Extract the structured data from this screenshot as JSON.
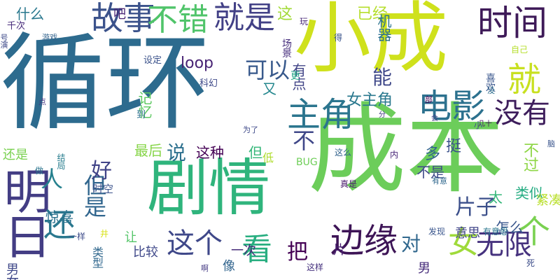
{
  "words": [
    {
      "text": "循环",
      "color": "#2d6b8e",
      "vertical": false
    },
    {
      "text": "成本",
      "color": "#6ccd5a",
      "vertical": false
    },
    {
      "text": "小成",
      "color": "#cfe11c",
      "vertical": false
    },
    {
      "text": "剧情",
      "color": "#2fb47c",
      "vertical": false
    },
    {
      "text": "明日",
      "color": "#433d84",
      "vertical": true
    },
    {
      "text": "时间",
      "color": "#3e1a58",
      "vertical": false
    },
    {
      "text": "边缘",
      "color": "#3d1456",
      "vertical": false
    },
    {
      "text": "就",
      "color": "#c8e020",
      "vertical": false
    },
    {
      "text": "电影",
      "color": "#2c718e",
      "vertical": false
    },
    {
      "text": "主角",
      "color": "#2b758e",
      "vertical": false
    },
    {
      "text": "故事",
      "color": "#3b528b",
      "vertical": false
    },
    {
      "text": "不错",
      "color": "#50c46a",
      "vertical": false
    },
    {
      "text": "就是",
      "color": "#424086",
      "vertical": false
    },
    {
      "text": "看",
      "color": "#28ae80",
      "vertical": false
    },
    {
      "text": "还",
      "color": "#2a788e",
      "vertical": false
    },
    {
      "text": "没有",
      "color": "#3e1e5c",
      "vertical": false
    },
    {
      "text": "这个",
      "color": "#3f4889",
      "vertical": false
    },
    {
      "text": "无限",
      "color": "#46327e",
      "vertical": false
    },
    {
      "text": "女",
      "color": "#9fda3a",
      "vertical": false
    },
    {
      "text": "个",
      "color": "#7ad151",
      "vertical": false
    },
    {
      "text": "可以",
      "color": "#38598c",
      "vertical": false
    },
    {
      "text": "把",
      "color": "#440154",
      "vertical": false
    },
    {
      "text": "但是",
      "color": "#31668e",
      "vertical": true
    },
    {
      "text": "不",
      "color": "#3f4788",
      "vertical": false
    },
    {
      "text": "人",
      "color": "#26818e",
      "vertical": false
    },
    {
      "text": "好",
      "color": "#404387",
      "vertical": false
    },
    {
      "text": "说",
      "color": "#2d708e",
      "vertical": false
    },
    {
      "text": "对",
      "color": "#31688e",
      "vertical": false
    },
    {
      "text": "能",
      "color": "#3f4889",
      "vertical": false
    },
    {
      "text": "片子",
      "color": "#3c508b",
      "vertical": false
    },
    {
      "text": "女主角",
      "color": "#2a788e",
      "vertical": false
    },
    {
      "text": "这",
      "color": "#a2da37",
      "vertical": false
    },
    {
      "text": "loop",
      "color": "#482374",
      "vertical": false
    },
    {
      "text": "这种",
      "color": "#440154",
      "vertical": false
    },
    {
      "text": "记忆",
      "color": "#5ec962",
      "vertical": true
    },
    {
      "text": "多",
      "color": "#32648e",
      "vertical": false
    },
    {
      "text": "挺",
      "color": "#3b528b",
      "vertical": false
    },
    {
      "text": "但",
      "color": "#35b779",
      "vertical": false
    },
    {
      "text": "太",
      "color": "#35b779",
      "vertical": false
    },
    {
      "text": "不过",
      "color": "#8ed645",
      "vertical": true
    },
    {
      "text": "最后",
      "color": "#87d549",
      "vertical": false
    },
    {
      "text": "又",
      "color": "#24878e",
      "vertical": false
    },
    {
      "text": "有点",
      "color": "#414487",
      "vertical": true
    },
    {
      "text": "什么",
      "color": "#29788e",
      "vertical": false
    },
    {
      "text": "吧",
      "color": "#482475",
      "vertical": false
    },
    {
      "text": "已经",
      "color": "#b5de2b",
      "vertical": false
    },
    {
      "text": "机器",
      "color": "#2c728e",
      "vertical": true
    },
    {
      "text": "不是",
      "color": "#3e4a89",
      "vertical": false
    },
    {
      "text": "怎么",
      "color": "#39568c",
      "vertical": false
    },
    {
      "text": "类似",
      "color": "#25ac82",
      "vertical": false
    },
    {
      "text": "紧凑",
      "color": "#b8de29",
      "vertical": false
    },
    {
      "text": "还是",
      "color": "#7ad151",
      "vertical": false
    },
    {
      "text": "男女",
      "color": "#3f4889",
      "vertical": true
    },
    {
      "text": "一次",
      "color": "#472c7a",
      "vertical": false
    },
    {
      "text": "像",
      "color": "#32658e",
      "vertical": false
    },
    {
      "text": "比较",
      "color": "#3f4889",
      "vertical": false
    },
    {
      "text": "让",
      "color": "#54c568",
      "vertical": false
    },
    {
      "text": "意思",
      "color": "#404588",
      "vertical": false
    },
    {
      "text": "惊喜",
      "color": "#2c728e",
      "vertical": false
    },
    {
      "text": "片",
      "color": "#481f70",
      "vertical": false
    },
    {
      "text": "男",
      "color": "#472d7b",
      "vertical": false
    },
    {
      "text": "低",
      "color": "#b0dd2f",
      "vertical": false
    },
    {
      "text": "BUG",
      "color": "#6ece58",
      "vertical": false
    },
    {
      "text": "时空",
      "color": "#3b528b",
      "vertical": false
    },
    {
      "text": "类型",
      "color": "#31688e",
      "vertical": true
    },
    {
      "text": "到",
      "color": "#2c718e",
      "vertical": false
    },
    {
      "text": "设定",
      "color": "#3b528b",
      "vertical": false
    },
    {
      "text": "科幻",
      "color": "#3e4989",
      "vertical": false
    },
    {
      "text": "玩",
      "color": "#482878",
      "vertical": false
    },
    {
      "text": "千次",
      "color": "#472a7a",
      "vertical": false
    },
    {
      "text": "号演",
      "color": "#3e4a89",
      "vertical": true
    },
    {
      "text": "场景",
      "color": "#472f7d",
      "vertical": true
    },
    {
      "text": "更",
      "color": "#21a685",
      "vertical": false
    },
    {
      "text": "得",
      "color": "#3a538b",
      "vertical": false
    },
    {
      "text": "喜欢",
      "color": "#39568c",
      "vertical": true
    },
    {
      "text": "没",
      "color": "#2e6f8e",
      "vertical": false
    },
    {
      "text": "部",
      "color": "#440154",
      "vertical": false
    },
    {
      "text": "会",
      "color": "#414287",
      "vertical": false
    },
    {
      "text": "几十",
      "color": "#471063",
      "vertical": false
    },
    {
      "text": "小",
      "color": "#3d4d8a",
      "vertical": false
    },
    {
      "text": "分",
      "color": "#443a83",
      "vertical": false
    },
    {
      "text": "为了",
      "color": "#3e4989",
      "vertical": false
    },
    {
      "text": "自己",
      "color": "#b5de2b",
      "vertical": false
    },
    {
      "text": "脑",
      "color": "#3a548c",
      "vertical": false
    },
    {
      "text": "有意",
      "color": "#31688e",
      "vertical": false
    },
    {
      "text": "有意思",
      "color": "#2a768e",
      "vertical": false
    },
    {
      "text": "真是",
      "color": "#481a6c",
      "vertical": false
    },
    {
      "text": "发现",
      "color": "#39558c",
      "vertical": false
    },
    {
      "text": "这么",
      "color": "#33638d",
      "vertical": false
    },
    {
      "text": "内",
      "color": "#482677",
      "vertical": false
    },
    {
      "text": "这样",
      "color": "#46327e",
      "vertical": false
    },
    {
      "text": "死",
      "color": "#3d4e8a",
      "vertical": false
    },
    {
      "text": "啊",
      "color": "#443983",
      "vertical": false
    },
    {
      "text": "井",
      "color": "#d8e219",
      "vertical": false
    },
    {
      "text": "一样",
      "color": "#3e4c8a",
      "vertical": false
    },
    {
      "text": "做",
      "color": "#2b748e",
      "vertical": false
    },
    {
      "text": "结局",
      "color": "#287d8e",
      "vertical": true
    },
    {
      "text": "游戏",
      "color": "#33638d",
      "vertical": false
    },
    {
      "text": "点",
      "color": "#453781",
      "vertical": false
    }
  ]
}
